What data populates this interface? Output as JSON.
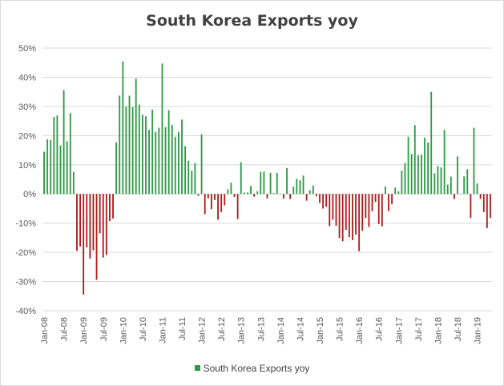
{
  "chart_data": {
    "type": "bar",
    "title": "South Korea Exports yoy",
    "xlabel": "",
    "ylabel": "",
    "x_start": "2008-01",
    "frequency": "monthly",
    "ylim": [
      -40,
      50
    ],
    "y_step": 10,
    "y_tick_labels": [
      "50%",
      "40%",
      "30%",
      "20%",
      "10%",
      "0%",
      "-10%",
      "-20%",
      "-30%",
      "-40%"
    ],
    "x_tick_labels": [
      "Jan-08",
      "Jul-08",
      "Jan-09",
      "Jul-09",
      "Jan-10",
      "Jul-10",
      "Jan-11",
      "Jul-11",
      "Jan-12",
      "Jul-12",
      "Jan-13",
      "Jul-13",
      "Jan-14",
      "Jul-14",
      "Jan-15",
      "Jul-15",
      "Jan-16",
      "Jul-16",
      "Jan-17",
      "Jul-17",
      "Jan-18",
      "Jul-18",
      "Jan-19"
    ],
    "grid": true,
    "legend": "bottom",
    "positive_color": "#2e9a46",
    "negative_color": "#b01c1c",
    "series": [
      {
        "name": "South Korea Exports yoy",
        "values": [
          14.5,
          18.7,
          18.5,
          26.4,
          26.9,
          16.6,
          35.6,
          18.1,
          27.7,
          7.6,
          -19.5,
          -18.0,
          -34.5,
          -18.3,
          -22.1,
          -19.3,
          -29.4,
          -13.5,
          -21.8,
          -20.9,
          -9.3,
          -8.4,
          17.7,
          33.7,
          45.4,
          30.0,
          33.7,
          29.8,
          39.5,
          30.6,
          27.2,
          26.6,
          22.0,
          28.9,
          21.3,
          22.7,
          44.7,
          22.9,
          28.7,
          23.7,
          19.6,
          21.2,
          25.5,
          16.4,
          11.4,
          8.0,
          10.6,
          -0.6,
          20.4,
          -6.9,
          -1.5,
          -5.2,
          -2.1,
          -8.8,
          -6.2,
          -3.9,
          1.6,
          3.9,
          -1.0,
          -8.6,
          10.9,
          0.5,
          0.5,
          2.8,
          -0.9,
          0.9,
          7.6,
          7.7,
          -1.5,
          7.2,
          0.3,
          7.2,
          0.1,
          -1.6,
          8.9,
          -1.7,
          2.5,
          5.2,
          4.7,
          6.3,
          -2.3,
          1.3,
          2.9,
          -0.8,
          -3.1,
          -5.0,
          -4.4,
          -11.0,
          -8.8,
          -10.9,
          -15.1,
          -16.2,
          -12.3,
          -14.8,
          -15.8,
          -13.9,
          -19.6,
          -12.6,
          -8.2,
          -11.3,
          -5.9,
          -2.7,
          -10.3,
          -11.1,
          2.6,
          -5.9,
          -3.5,
          2.2,
          0.9,
          8.0,
          10.6,
          19.6,
          13.7,
          23.6,
          13.3,
          13.5,
          19.3,
          17.6,
          35.0,
          7.1,
          9.6,
          9.1,
          22.0,
          3.2,
          5.9,
          -1.7,
          12.9,
          0.1,
          6.0,
          8.5,
          -8.2,
          22.7,
          3.6,
          -1.7,
          -6.2,
          -11.7,
          -8.2
        ]
      }
    ]
  }
}
